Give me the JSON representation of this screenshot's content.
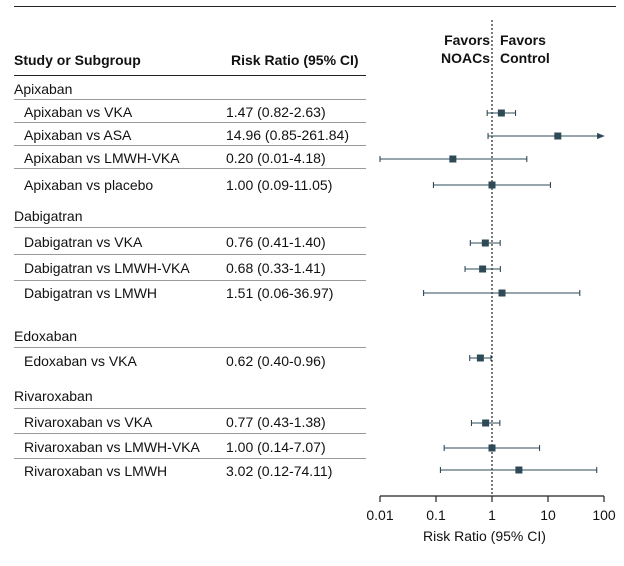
{
  "header": {
    "study": "Study or Subgroup",
    "rr": "Risk Ratio (95% CI)",
    "favors_left_1": "Favors",
    "favors_left_2": "NOACs",
    "favors_right_1": "Favors",
    "favors_right_2": "Control"
  },
  "chart_data": {
    "type": "forest",
    "xlabel": "Risk Ratio (95% CI)",
    "scale": "log",
    "xlim": [
      0.01,
      100
    ],
    "xticks": [
      "0.01",
      "0.1",
      "1",
      "10",
      "100"
    ],
    "reference_line": 1,
    "groups": [
      {
        "name": "Apixaban",
        "rows": [
          {
            "study": "Apixaban vs VKA",
            "ci_text": "1.47  (0.82-2.63)",
            "rr": 1.47,
            "lo": 0.82,
            "hi": 2.63
          },
          {
            "study": "Apixaban vs ASA",
            "ci_text": "14.96 (0.85-261.84)",
            "rr": 14.96,
            "lo": 0.85,
            "hi": 261.84
          },
          {
            "study": "Apixaban vs LMWH-VKA",
            "ci_text": "0.20  (0.01-4.18)",
            "rr": 0.2,
            "lo": 0.01,
            "hi": 4.18
          },
          {
            "study": "Apixaban vs placebo",
            "ci_text": "1.00  (0.09-11.05)",
            "rr": 1.0,
            "lo": 0.09,
            "hi": 11.05
          }
        ]
      },
      {
        "name": "Dabigatran",
        "rows": [
          {
            "study": "Dabigatran vs VKA",
            "ci_text": "0.76 (0.41-1.40)",
            "rr": 0.76,
            "lo": 0.41,
            "hi": 1.4
          },
          {
            "study": "Dabigatran vs LMWH-VKA",
            "ci_text": "0.68 (0.33-1.41)",
            "rr": 0.68,
            "lo": 0.33,
            "hi": 1.41
          },
          {
            "study": "Dabigatran vs LMWH",
            "ci_text": "1.51 (0.06-36.97)",
            "rr": 1.51,
            "lo": 0.06,
            "hi": 36.97
          }
        ]
      },
      {
        "name": "Edoxaban",
        "rows": [
          {
            "study": "Edoxaban vs VKA",
            "ci_text": "0.62 (0.40-0.96)",
            "rr": 0.62,
            "lo": 0.4,
            "hi": 0.96
          }
        ]
      },
      {
        "name": "Rivaroxaban",
        "rows": [
          {
            "study": "Rivaroxaban vs VKA",
            "ci_text": "0.77 (0.43-1.38)",
            "rr": 0.77,
            "lo": 0.43,
            "hi": 1.38
          },
          {
            "study": "Rivaroxaban vs LMWH-VKA",
            "ci_text": "1.00 (0.14-7.07)",
            "rr": 1.0,
            "lo": 0.14,
            "hi": 7.07
          },
          {
            "study": "Rivaroxaban vs LMWH",
            "ci_text": "3.02 (0.12-74.11)",
            "rr": 3.02,
            "lo": 0.12,
            "hi": 74.11
          }
        ]
      }
    ],
    "colors": {
      "marker": "#2e4a57",
      "line": "#2e4a57",
      "reference": "#222222"
    }
  }
}
